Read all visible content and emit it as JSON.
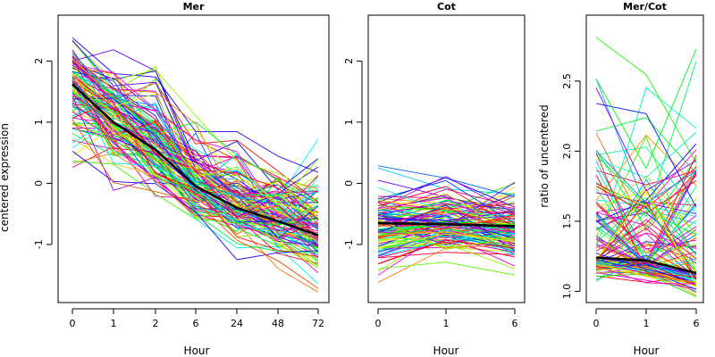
{
  "chart_data": [
    {
      "type": "line",
      "title": "Mer",
      "xlabel": "Hour",
      "ylabel": "centered expression",
      "categories": [
        "0",
        "1",
        "2",
        "6",
        "24",
        "48",
        "72"
      ],
      "ylim": [
        -1.95,
        2.75
      ],
      "yticks": [
        -1,
        0,
        1,
        2
      ],
      "ytick_labels": [
        "-1",
        "0",
        "1",
        "2"
      ],
      "n_gene_series": 120,
      "gene_palette": "rainbow",
      "mean_series": {
        "color": "#000000",
        "values": [
          1.62,
          1.0,
          0.55,
          -0.05,
          -0.4,
          -0.62,
          -0.85
        ]
      },
      "gene_series_values": {
        "min": [
          -0.45,
          -0.3,
          -0.55,
          -0.88,
          -1.25,
          -1.55,
          -1.8
        ],
        "max": [
          2.6,
          2.4,
          2.5,
          1.2,
          1.15,
          0.7,
          0.97
        ]
      }
    },
    {
      "type": "line",
      "title": "Cot",
      "xlabel": "Hour",
      "ylabel": "",
      "categories": [
        "0",
        "1",
        "6"
      ],
      "ylim": [
        -1.95,
        2.75
      ],
      "yticks": [
        -1,
        0,
        1,
        2
      ],
      "ytick_labels": [
        "-1",
        "0",
        "1",
        "2"
      ],
      "n_gene_series": 120,
      "gene_palette": "rainbow",
      "mean_series": {
        "color": "#000000",
        "values": [
          -0.65,
          -0.67,
          -0.7
        ]
      },
      "gene_series_values": {
        "min": [
          -1.65,
          -1.35,
          -1.5
        ],
        "max": [
          0.42,
          0.55,
          0.25
        ]
      }
    },
    {
      "type": "line",
      "title": "Mer/Cot",
      "xlabel": "Hour",
      "ylabel": "ratio of uncentered",
      "categories": [
        "0",
        "1",
        "6"
      ],
      "ylim": [
        0.92,
        2.97
      ],
      "yticks": [
        1.0,
        1.5,
        2.0,
        2.5
      ],
      "ytick_labels": [
        "1.0",
        "1.5",
        "2.0",
        "2.5"
      ],
      "n_gene_series": 120,
      "gene_palette": "rainbow",
      "mean_series": {
        "color": "#000000",
        "values": [
          1.24,
          1.22,
          1.13
        ]
      },
      "gene_series_values": {
        "min": [
          1.02,
          1.02,
          0.92
        ],
        "max": [
          2.9,
          2.8,
          2.83
        ]
      }
    }
  ]
}
